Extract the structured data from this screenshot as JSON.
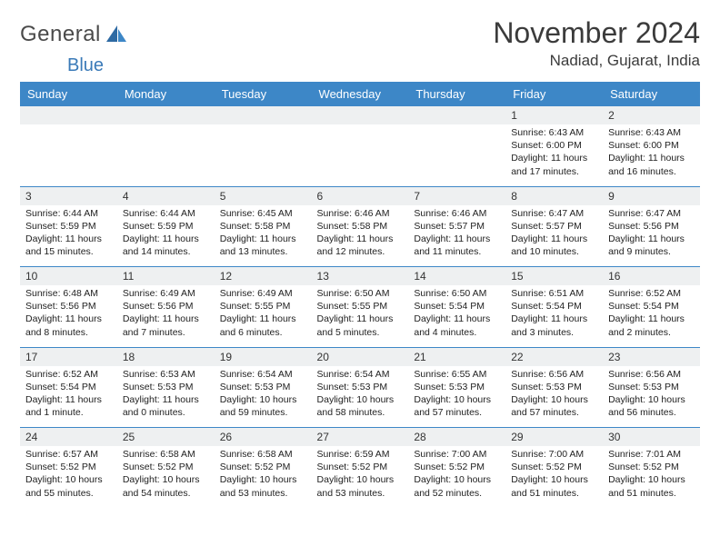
{
  "brand": {
    "word1": "General",
    "word2": "Blue"
  },
  "header": {
    "title": "November 2024",
    "location": "Nadiad, Gujarat, India"
  },
  "colors": {
    "accent": "#3d87c7",
    "daynum_bg": "#eef0f1",
    "text": "#222222",
    "bg": "#ffffff"
  },
  "weekdays": [
    "Sunday",
    "Monday",
    "Tuesday",
    "Wednesday",
    "Thursday",
    "Friday",
    "Saturday"
  ],
  "calendar": {
    "first_weekday_index": 5,
    "weeks": [
      [
        null,
        null,
        null,
        null,
        null,
        {
          "n": "1",
          "sunrise": "6:43 AM",
          "sunset": "6:00 PM",
          "dl1": "Daylight: 11 hours",
          "dl2": "and 17 minutes."
        },
        {
          "n": "2",
          "sunrise": "6:43 AM",
          "sunset": "6:00 PM",
          "dl1": "Daylight: 11 hours",
          "dl2": "and 16 minutes."
        }
      ],
      [
        {
          "n": "3",
          "sunrise": "6:44 AM",
          "sunset": "5:59 PM",
          "dl1": "Daylight: 11 hours",
          "dl2": "and 15 minutes."
        },
        {
          "n": "4",
          "sunrise": "6:44 AM",
          "sunset": "5:59 PM",
          "dl1": "Daylight: 11 hours",
          "dl2": "and 14 minutes."
        },
        {
          "n": "5",
          "sunrise": "6:45 AM",
          "sunset": "5:58 PM",
          "dl1": "Daylight: 11 hours",
          "dl2": "and 13 minutes."
        },
        {
          "n": "6",
          "sunrise": "6:46 AM",
          "sunset": "5:58 PM",
          "dl1": "Daylight: 11 hours",
          "dl2": "and 12 minutes."
        },
        {
          "n": "7",
          "sunrise": "6:46 AM",
          "sunset": "5:57 PM",
          "dl1": "Daylight: 11 hours",
          "dl2": "and 11 minutes."
        },
        {
          "n": "8",
          "sunrise": "6:47 AM",
          "sunset": "5:57 PM",
          "dl1": "Daylight: 11 hours",
          "dl2": "and 10 minutes."
        },
        {
          "n": "9",
          "sunrise": "6:47 AM",
          "sunset": "5:56 PM",
          "dl1": "Daylight: 11 hours",
          "dl2": "and 9 minutes."
        }
      ],
      [
        {
          "n": "10",
          "sunrise": "6:48 AM",
          "sunset": "5:56 PM",
          "dl1": "Daylight: 11 hours",
          "dl2": "and 8 minutes."
        },
        {
          "n": "11",
          "sunrise": "6:49 AM",
          "sunset": "5:56 PM",
          "dl1": "Daylight: 11 hours",
          "dl2": "and 7 minutes."
        },
        {
          "n": "12",
          "sunrise": "6:49 AM",
          "sunset": "5:55 PM",
          "dl1": "Daylight: 11 hours",
          "dl2": "and 6 minutes."
        },
        {
          "n": "13",
          "sunrise": "6:50 AM",
          "sunset": "5:55 PM",
          "dl1": "Daylight: 11 hours",
          "dl2": "and 5 minutes."
        },
        {
          "n": "14",
          "sunrise": "6:50 AM",
          "sunset": "5:54 PM",
          "dl1": "Daylight: 11 hours",
          "dl2": "and 4 minutes."
        },
        {
          "n": "15",
          "sunrise": "6:51 AM",
          "sunset": "5:54 PM",
          "dl1": "Daylight: 11 hours",
          "dl2": "and 3 minutes."
        },
        {
          "n": "16",
          "sunrise": "6:52 AM",
          "sunset": "5:54 PM",
          "dl1": "Daylight: 11 hours",
          "dl2": "and 2 minutes."
        }
      ],
      [
        {
          "n": "17",
          "sunrise": "6:52 AM",
          "sunset": "5:54 PM",
          "dl1": "Daylight: 11 hours",
          "dl2": "and 1 minute."
        },
        {
          "n": "18",
          "sunrise": "6:53 AM",
          "sunset": "5:53 PM",
          "dl1": "Daylight: 11 hours",
          "dl2": "and 0 minutes."
        },
        {
          "n": "19",
          "sunrise": "6:54 AM",
          "sunset": "5:53 PM",
          "dl1": "Daylight: 10 hours",
          "dl2": "and 59 minutes."
        },
        {
          "n": "20",
          "sunrise": "6:54 AM",
          "sunset": "5:53 PM",
          "dl1": "Daylight: 10 hours",
          "dl2": "and 58 minutes."
        },
        {
          "n": "21",
          "sunrise": "6:55 AM",
          "sunset": "5:53 PM",
          "dl1": "Daylight: 10 hours",
          "dl2": "and 57 minutes."
        },
        {
          "n": "22",
          "sunrise": "6:56 AM",
          "sunset": "5:53 PM",
          "dl1": "Daylight: 10 hours",
          "dl2": "and 57 minutes."
        },
        {
          "n": "23",
          "sunrise": "6:56 AM",
          "sunset": "5:53 PM",
          "dl1": "Daylight: 10 hours",
          "dl2": "and 56 minutes."
        }
      ],
      [
        {
          "n": "24",
          "sunrise": "6:57 AM",
          "sunset": "5:52 PM",
          "dl1": "Daylight: 10 hours",
          "dl2": "and 55 minutes."
        },
        {
          "n": "25",
          "sunrise": "6:58 AM",
          "sunset": "5:52 PM",
          "dl1": "Daylight: 10 hours",
          "dl2": "and 54 minutes."
        },
        {
          "n": "26",
          "sunrise": "6:58 AM",
          "sunset": "5:52 PM",
          "dl1": "Daylight: 10 hours",
          "dl2": "and 53 minutes."
        },
        {
          "n": "27",
          "sunrise": "6:59 AM",
          "sunset": "5:52 PM",
          "dl1": "Daylight: 10 hours",
          "dl2": "and 53 minutes."
        },
        {
          "n": "28",
          "sunrise": "7:00 AM",
          "sunset": "5:52 PM",
          "dl1": "Daylight: 10 hours",
          "dl2": "and 52 minutes."
        },
        {
          "n": "29",
          "sunrise": "7:00 AM",
          "sunset": "5:52 PM",
          "dl1": "Daylight: 10 hours",
          "dl2": "and 51 minutes."
        },
        {
          "n": "30",
          "sunrise": "7:01 AM",
          "sunset": "5:52 PM",
          "dl1": "Daylight: 10 hours",
          "dl2": "and 51 minutes."
        }
      ]
    ]
  },
  "labels": {
    "sunrise_prefix": "Sunrise: ",
    "sunset_prefix": "Sunset: "
  }
}
